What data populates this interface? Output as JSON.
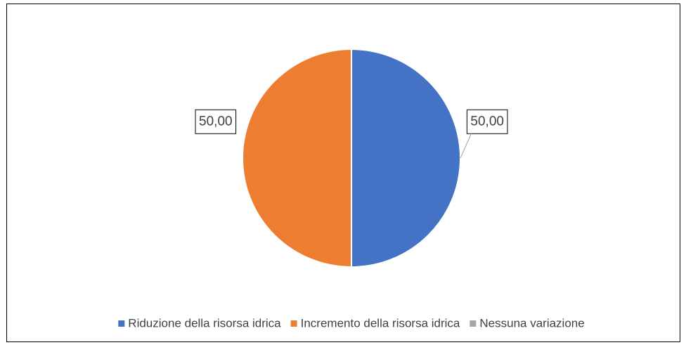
{
  "chart_data": {
    "type": "pie",
    "categories": [
      "Riduzione della risorsa idrica",
      "Incremento della risorsa idrica",
      "Nessuna variazione"
    ],
    "values": [
      50,
      50,
      0
    ],
    "value_labels": [
      "50,00",
      "50,00",
      null
    ],
    "colors": [
      "#4472c4",
      "#ed7d31",
      "#a5a5a5"
    ],
    "legend": "bottom"
  }
}
